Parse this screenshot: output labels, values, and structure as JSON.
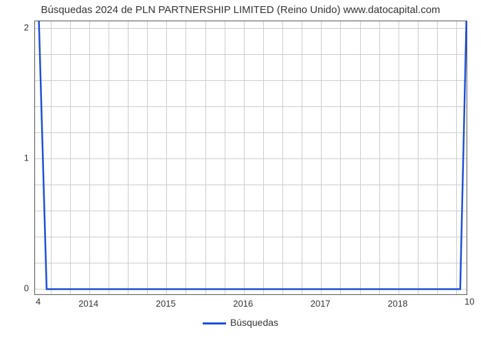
{
  "chart": {
    "type": "line",
    "title": "Búsquedas 2024 de PLN PARTNERSHIP LIMITED (Reino Unido) www.datocapital.com",
    "title_fontsize": 15,
    "title_color": "#333333",
    "background_color": "#ffffff",
    "border_color": "#555555",
    "grid_color": "#cccccc",
    "series_color": "#1a4fd6",
    "line_width": 2.5,
    "xlim": [
      2013.3,
      2018.9
    ],
    "ylim": [
      -0.05,
      2.05
    ],
    "x_major_ticks": [
      2014,
      2015,
      2016,
      2017,
      2018
    ],
    "y_major_ticks": [
      0,
      1,
      2
    ],
    "y_minor_count_between": 4,
    "x_minor_count_between": 3,
    "corner_bottom_left": "4",
    "corner_bottom_right": "10",
    "legend": {
      "label": "Búsquedas",
      "color": "#1a4fd6"
    },
    "data": {
      "x": [
        2013.35,
        2013.45,
        2018.8,
        2018.88
      ],
      "y": [
        2.05,
        0,
        0,
        2.05
      ]
    },
    "tick_fontsize": 13,
    "tick_color": "#333333"
  }
}
